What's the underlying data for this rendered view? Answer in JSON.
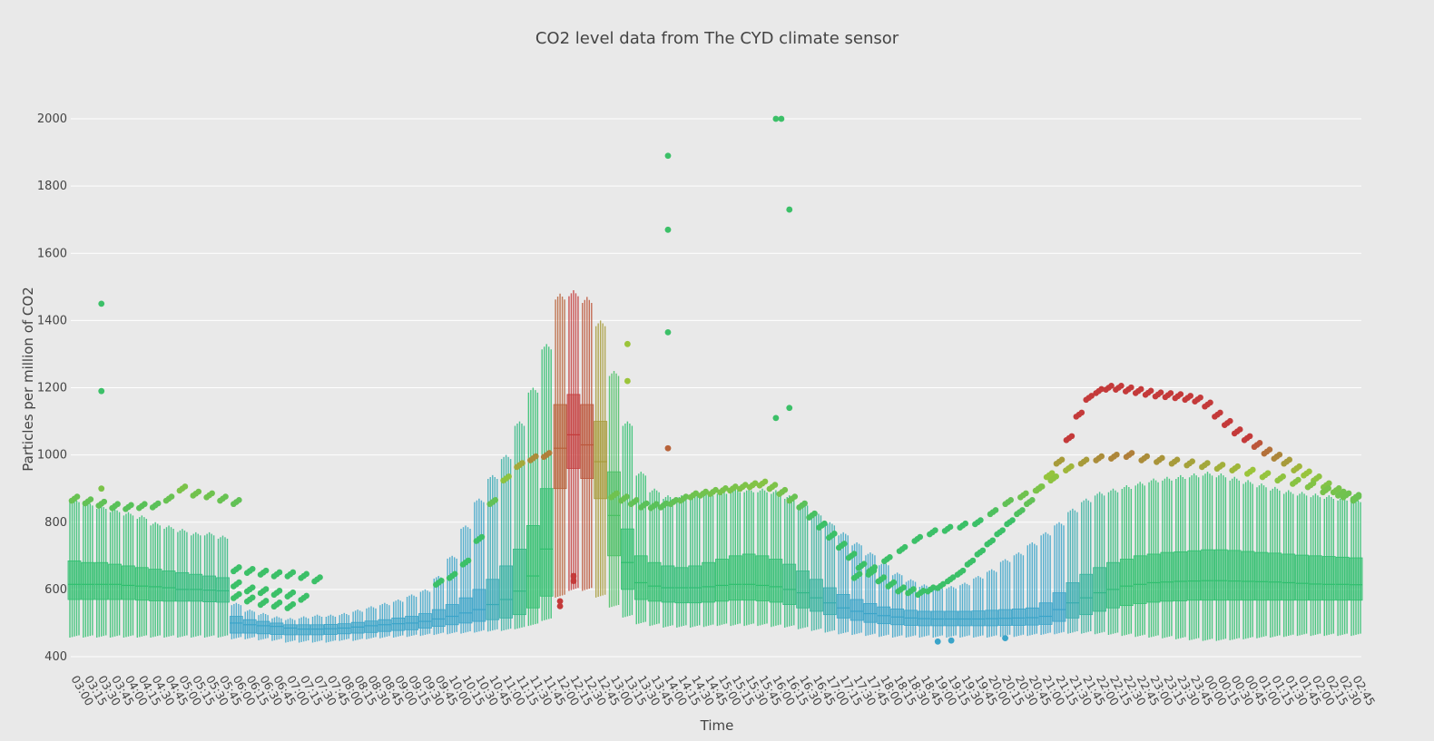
{
  "chart_data": {
    "type": "box",
    "title": "CO2 level data from The CYD climate sensor",
    "xlabel": "Time",
    "ylabel": "Particles per million of CO2",
    "ylim": [
      390,
      2150
    ],
    "yticks": [
      400,
      600,
      800,
      1000,
      1200,
      1400,
      1600,
      1800,
      2000
    ],
    "grid": true,
    "legend": "none",
    "color_scale": {
      "low": "#3aa4c9",
      "mid": "#2fbf6e",
      "high2": "#9bc43a",
      "peak": "#c43a3a"
    },
    "x_tick_labels": [
      "03:00",
      "03:15",
      "03:30",
      "03:45",
      "04:00",
      "04:15",
      "04:30",
      "04:45",
      "05:00",
      "05:15",
      "05:30",
      "05:45",
      "06:00",
      "06:15",
      "06:30",
      "06:45",
      "07:00",
      "07:15",
      "07:30",
      "07:45",
      "08:00",
      "08:15",
      "08:30",
      "08:45",
      "09:00",
      "09:15",
      "09:30",
      "09:45",
      "10:00",
      "10:15",
      "10:30",
      "10:45",
      "11:00",
      "11:15",
      "11:30",
      "11:45",
      "12:00",
      "12:15",
      "12:30",
      "12:45",
      "13:00",
      "13:15",
      "13:30",
      "13:45",
      "14:00",
      "14:15",
      "14:30",
      "14:45",
      "15:00",
      "15:15",
      "15:30",
      "15:45",
      "16:00",
      "16:15",
      "16:30",
      "16:45",
      "17:00",
      "17:15",
      "17:30",
      "17:45",
      "18:00",
      "18:15",
      "18:30",
      "18:45",
      "19:00",
      "19:15",
      "19:30",
      "19:45",
      "20:00",
      "20:15",
      "20:30",
      "20:45",
      "21:00",
      "21:15",
      "21:30",
      "21:45",
      "22:00",
      "22:15",
      "22:30",
      "22:45",
      "23:00",
      "23:15",
      "23:30",
      "23:45",
      "00:00",
      "00:15",
      "00:30",
      "00:45",
      "01:00",
      "01:15",
      "01:30",
      "01:45",
      "02:00",
      "02:15",
      "02:30",
      "02:45"
    ],
    "boxes": [
      {
        "time": "03:00",
        "min": 460,
        "q1": 570,
        "median": 615,
        "q3": 685,
        "max": 870
      },
      {
        "time": "03:15",
        "min": 460,
        "q1": 570,
        "median": 615,
        "q3": 680,
        "max": 860
      },
      {
        "time": "03:30",
        "min": 460,
        "q1": 570,
        "median": 615,
        "q3": 680,
        "max": 850
      },
      {
        "time": "03:45",
        "min": 460,
        "q1": 570,
        "median": 615,
        "q3": 675,
        "max": 840
      },
      {
        "time": "04:00",
        "min": 460,
        "q1": 570,
        "median": 612,
        "q3": 670,
        "max": 830
      },
      {
        "time": "04:15",
        "min": 460,
        "q1": 568,
        "median": 610,
        "q3": 665,
        "max": 820
      },
      {
        "time": "04:30",
        "min": 460,
        "q1": 566,
        "median": 608,
        "q3": 660,
        "max": 800
      },
      {
        "time": "04:45",
        "min": 460,
        "q1": 565,
        "median": 605,
        "q3": 655,
        "max": 790
      },
      {
        "time": "05:00",
        "min": 460,
        "q1": 565,
        "median": 600,
        "q3": 650,
        "max": 780
      },
      {
        "time": "05:15",
        "min": 460,
        "q1": 565,
        "median": 600,
        "q3": 645,
        "max": 770
      },
      {
        "time": "05:30",
        "min": 460,
        "q1": 563,
        "median": 598,
        "q3": 640,
        "max": 770
      },
      {
        "time": "05:45",
        "min": 460,
        "q1": 562,
        "median": 596,
        "q3": 635,
        "max": 760
      },
      {
        "time": "06:00",
        "min": 455,
        "q1": 470,
        "median": 500,
        "q3": 520,
        "max": 560
      },
      {
        "time": "06:15",
        "min": 455,
        "q1": 470,
        "median": 495,
        "q3": 510,
        "max": 540
      },
      {
        "time": "06:30",
        "min": 452,
        "q1": 468,
        "median": 492,
        "q3": 505,
        "max": 530
      },
      {
        "time": "06:45",
        "min": 450,
        "q1": 466,
        "median": 490,
        "q3": 500,
        "max": 520
      },
      {
        "time": "07:00",
        "min": 445,
        "q1": 465,
        "median": 485,
        "q3": 495,
        "max": 515
      },
      {
        "time": "07:15",
        "min": 445,
        "q1": 465,
        "median": 482,
        "q3": 495,
        "max": 520
      },
      {
        "time": "07:30",
        "min": 445,
        "q1": 465,
        "median": 482,
        "q3": 495,
        "max": 525
      },
      {
        "time": "07:45",
        "min": 445,
        "q1": 466,
        "median": 483,
        "q3": 496,
        "max": 525
      },
      {
        "time": "08:00",
        "min": 450,
        "q1": 468,
        "median": 485,
        "q3": 498,
        "max": 530
      },
      {
        "time": "08:15",
        "min": 450,
        "q1": 470,
        "median": 488,
        "q3": 502,
        "max": 540
      },
      {
        "time": "08:30",
        "min": 455,
        "q1": 472,
        "median": 492,
        "q3": 506,
        "max": 550
      },
      {
        "time": "08:45",
        "min": 458,
        "q1": 475,
        "median": 495,
        "q3": 510,
        "max": 560
      },
      {
        "time": "09:00",
        "min": 460,
        "q1": 478,
        "median": 498,
        "q3": 515,
        "max": 570
      },
      {
        "time": "09:15",
        "min": 462,
        "q1": 480,
        "median": 500,
        "q3": 520,
        "max": 585
      },
      {
        "time": "09:30",
        "min": 465,
        "q1": 485,
        "median": 505,
        "q3": 528,
        "max": 600
      },
      {
        "time": "09:45",
        "min": 468,
        "q1": 490,
        "median": 512,
        "q3": 540,
        "max": 640
      },
      {
        "time": "10:00",
        "min": 470,
        "q1": 495,
        "median": 520,
        "q3": 555,
        "max": 700
      },
      {
        "time": "10:15",
        "min": 472,
        "q1": 500,
        "median": 530,
        "q3": 575,
        "max": 790
      },
      {
        "time": "10:30",
        "min": 475,
        "q1": 505,
        "median": 540,
        "q3": 600,
        "max": 870
      },
      {
        "time": "10:45",
        "min": 478,
        "q1": 510,
        "median": 555,
        "q3": 630,
        "max": 940
      },
      {
        "time": "11:00",
        "min": 480,
        "q1": 515,
        "median": 570,
        "q3": 670,
        "max": 1000
      },
      {
        "time": "11:15",
        "min": 485,
        "q1": 525,
        "median": 595,
        "q3": 720,
        "max": 1100
      },
      {
        "time": "11:30",
        "min": 495,
        "q1": 545,
        "median": 640,
        "q3": 790,
        "max": 1200
      },
      {
        "time": "11:45",
        "min": 510,
        "q1": 580,
        "median": 720,
        "q3": 900,
        "max": 1330
      },
      {
        "time": "12:00",
        "min": 580,
        "q1": 900,
        "median": 1020,
        "q3": 1150,
        "max": 1480
      },
      {
        "time": "12:15",
        "min": 600,
        "q1": 960,
        "median": 1060,
        "q3": 1180,
        "max": 1490
      },
      {
        "time": "12:30",
        "min": 600,
        "q1": 930,
        "median": 1030,
        "q3": 1150,
        "max": 1470
      },
      {
        "time": "12:45",
        "min": 580,
        "q1": 870,
        "median": 980,
        "q3": 1100,
        "max": 1400
      },
      {
        "time": "13:00",
        "min": 550,
        "q1": 700,
        "median": 820,
        "q3": 950,
        "max": 1250
      },
      {
        "time": "13:15",
        "min": 520,
        "q1": 600,
        "median": 680,
        "q3": 780,
        "max": 1100
      },
      {
        "time": "13:30",
        "min": 500,
        "q1": 570,
        "median": 620,
        "q3": 700,
        "max": 950
      },
      {
        "time": "13:45",
        "min": 495,
        "q1": 565,
        "median": 610,
        "q3": 680,
        "max": 900
      },
      {
        "time": "14:00",
        "min": 490,
        "q1": 562,
        "median": 605,
        "q3": 670,
        "max": 880
      },
      {
        "time": "14:15",
        "min": 490,
        "q1": 560,
        "median": 605,
        "q3": 665,
        "max": 880
      },
      {
        "time": "14:30",
        "min": 490,
        "q1": 560,
        "median": 605,
        "q3": 670,
        "max": 885
      },
      {
        "time": "14:45",
        "min": 492,
        "q1": 562,
        "median": 608,
        "q3": 680,
        "max": 890
      },
      {
        "time": "15:00",
        "min": 495,
        "q1": 565,
        "median": 612,
        "q3": 690,
        "max": 895
      },
      {
        "time": "15:15",
        "min": 495,
        "q1": 568,
        "median": 615,
        "q3": 700,
        "max": 900
      },
      {
        "time": "15:30",
        "min": 495,
        "q1": 568,
        "median": 615,
        "q3": 705,
        "max": 900
      },
      {
        "time": "15:45",
        "min": 495,
        "q1": 566,
        "median": 612,
        "q3": 700,
        "max": 900
      },
      {
        "time": "16:00",
        "min": 492,
        "q1": 562,
        "median": 608,
        "q3": 690,
        "max": 895
      },
      {
        "time": "16:15",
        "min": 490,
        "q1": 555,
        "median": 600,
        "q3": 675,
        "max": 880
      },
      {
        "time": "16:30",
        "min": 485,
        "q1": 545,
        "median": 590,
        "q3": 655,
        "max": 860
      },
      {
        "time": "16:45",
        "min": 480,
        "q1": 535,
        "median": 575,
        "q3": 630,
        "max": 830
      },
      {
        "time": "17:00",
        "min": 475,
        "q1": 525,
        "median": 560,
        "q3": 605,
        "max": 800
      },
      {
        "time": "17:15",
        "min": 470,
        "q1": 515,
        "median": 545,
        "q3": 585,
        "max": 770
      },
      {
        "time": "17:30",
        "min": 468,
        "q1": 508,
        "median": 535,
        "q3": 570,
        "max": 740
      },
      {
        "time": "17:45",
        "min": 465,
        "q1": 502,
        "median": 528,
        "q3": 558,
        "max": 710
      },
      {
        "time": "18:00",
        "min": 462,
        "q1": 498,
        "median": 522,
        "q3": 548,
        "max": 680
      },
      {
        "time": "18:15",
        "min": 460,
        "q1": 495,
        "median": 518,
        "q3": 542,
        "max": 650
      },
      {
        "time": "18:30",
        "min": 460,
        "q1": 493,
        "median": 515,
        "q3": 538,
        "max": 630
      },
      {
        "time": "18:45",
        "min": 460,
        "q1": 492,
        "median": 513,
        "q3": 535,
        "max": 615
      },
      {
        "time": "19:00",
        "min": 460,
        "q1": 492,
        "median": 512,
        "q3": 535,
        "max": 610
      },
      {
        "time": "19:15",
        "min": 460,
        "q1": 492,
        "median": 512,
        "q3": 535,
        "max": 610
      },
      {
        "time": "19:30",
        "min": 460,
        "q1": 492,
        "median": 512,
        "q3": 535,
        "max": 620
      },
      {
        "time": "19:45",
        "min": 460,
        "q1": 492,
        "median": 512,
        "q3": 536,
        "max": 640
      },
      {
        "time": "20:00",
        "min": 460,
        "q1": 492,
        "median": 513,
        "q3": 538,
        "max": 660
      },
      {
        "time": "20:15",
        "min": 462,
        "q1": 493,
        "median": 514,
        "q3": 540,
        "max": 690
      },
      {
        "time": "20:30",
        "min": 462,
        "q1": 493,
        "median": 515,
        "q3": 542,
        "max": 710
      },
      {
        "time": "20:45",
        "min": 465,
        "q1": 494,
        "median": 516,
        "q3": 545,
        "max": 740
      },
      {
        "time": "21:00",
        "min": 468,
        "q1": 496,
        "median": 520,
        "q3": 560,
        "max": 770
      },
      {
        "time": "21:15",
        "min": 470,
        "q1": 505,
        "median": 540,
        "q3": 590,
        "max": 800
      },
      {
        "time": "21:30",
        "min": 472,
        "q1": 515,
        "median": 560,
        "q3": 620,
        "max": 840
      },
      {
        "time": "21:45",
        "min": 472,
        "q1": 525,
        "median": 575,
        "q3": 645,
        "max": 870
      },
      {
        "time": "22:00",
        "min": 470,
        "q1": 535,
        "median": 590,
        "q3": 665,
        "max": 890
      },
      {
        "time": "22:15",
        "min": 468,
        "q1": 545,
        "median": 600,
        "q3": 680,
        "max": 900
      },
      {
        "time": "22:30",
        "min": 465,
        "q1": 552,
        "median": 610,
        "q3": 690,
        "max": 910
      },
      {
        "time": "22:45",
        "min": 462,
        "q1": 558,
        "median": 615,
        "q3": 700,
        "max": 920
      },
      {
        "time": "23:00",
        "min": 460,
        "q1": 562,
        "median": 620,
        "q3": 705,
        "max": 930
      },
      {
        "time": "23:15",
        "min": 458,
        "q1": 565,
        "median": 622,
        "q3": 710,
        "max": 935
      },
      {
        "time": "23:30",
        "min": 455,
        "q1": 566,
        "median": 624,
        "q3": 712,
        "max": 940
      },
      {
        "time": "23:45",
        "min": 452,
        "q1": 568,
        "median": 625,
        "q3": 715,
        "max": 945
      },
      {
        "time": "00:00",
        "min": 450,
        "q1": 568,
        "median": 626,
        "q3": 718,
        "max": 950
      },
      {
        "time": "00:15",
        "min": 450,
        "q1": 568,
        "median": 626,
        "q3": 718,
        "max": 945
      },
      {
        "time": "00:30",
        "min": 452,
        "q1": 568,
        "median": 625,
        "q3": 716,
        "max": 935
      },
      {
        "time": "00:45",
        "min": 455,
        "q1": 568,
        "median": 624,
        "q3": 713,
        "max": 925
      },
      {
        "time": "01:00",
        "min": 458,
        "q1": 568,
        "median": 623,
        "q3": 710,
        "max": 915
      },
      {
        "time": "01:15",
        "min": 460,
        "q1": 568,
        "median": 622,
        "q3": 708,
        "max": 905
      },
      {
        "time": "01:30",
        "min": 462,
        "q1": 568,
        "median": 620,
        "q3": 705,
        "max": 895
      },
      {
        "time": "01:45",
        "min": 465,
        "q1": 568,
        "median": 618,
        "q3": 702,
        "max": 890
      },
      {
        "time": "02:00",
        "min": 465,
        "q1": 568,
        "median": 616,
        "q3": 700,
        "max": 885
      },
      {
        "time": "02:15",
        "min": 465,
        "q1": 568,
        "median": 615,
        "q3": 698,
        "max": 880
      },
      {
        "time": "02:30",
        "min": 465,
        "q1": 568,
        "median": 615,
        "q3": 696,
        "max": 875
      },
      {
        "time": "02:45",
        "min": 465,
        "q1": 568,
        "median": 614,
        "q3": 694,
        "max": 870
      }
    ],
    "upper_traces": [
      {
        "values": [
          870,
          862,
          855,
          848,
          845,
          848,
          850,
          870,
          900,
          885,
          880,
          870,
          860
        ]
      },
      {
        "values": [
          660,
          655,
          650,
          645,
          645,
          640,
          630
        ]
      },
      {
        "values": [
          615,
          600,
          595,
          590,
          585,
          575
        ]
      },
      {
        "values": [
          580,
          570,
          560,
          555,
          550
        ]
      },
      {
        "values": [
          620,
          640,
          680,
          750,
          860,
          930,
          970,
          990,
          1000
        ]
      },
      {
        "values": [
          880,
          870,
          860,
          850,
          848,
          850,
          860,
          870,
          880,
          885,
          890,
          895,
          900,
          905,
          910,
          915,
          905,
          890,
          870,
          850,
          820,
          790,
          760,
          730,
          700,
          670,
          650,
          630,
          615,
          600,
          595,
          590,
          600,
          610,
          630,
          650,
          680,
          710,
          740,
          770,
          800,
          830,
          860,
          900,
          940,
          980,
          1050,
          1120,
          1170,
          1190,
          1200,
          1200,
          1195,
          1190,
          1185,
          1180,
          1178,
          1175,
          1170,
          1165,
          1150,
          1120,
          1095,
          1070,
          1050,
          1030,
          1010,
          995,
          980,
          960,
          945,
          930,
          910,
          895,
          880,
          870
        ]
      },
      {
        "values": [
          640,
          660,
          690,
          720,
          750,
          770,
          780,
          790,
          800,
          830,
          860,
          880,
          900,
          930,
          960,
          980,
          990,
          995,
          1000,
          990,
          985,
          980,
          975,
          970,
          965,
          960,
          950,
          940,
          930,
          920,
          910,
          895,
          885,
          875
        ]
      }
    ],
    "outliers": [
      {
        "time": "03:30",
        "value": 1450
      },
      {
        "time": "03:30",
        "value": 1190
      },
      {
        "time": "03:30",
        "value": 900
      },
      {
        "time": "14:00",
        "value": 1890
      },
      {
        "time": "14:00",
        "value": 1670
      },
      {
        "time": "14:00",
        "value": 1365
      },
      {
        "time": "14:00",
        "value": 1020
      },
      {
        "time": "16:00",
        "value": 2000
      },
      {
        "time": "16:00",
        "value": 2000
      },
      {
        "time": "16:15",
        "value": 1730
      },
      {
        "time": "16:15",
        "value": 1140
      },
      {
        "time": "16:00",
        "value": 1110
      },
      {
        "time": "13:15",
        "value": 1330
      },
      {
        "time": "13:15",
        "value": 1220
      },
      {
        "time": "12:15",
        "value": 640
      },
      {
        "time": "12:15",
        "value": 625
      },
      {
        "time": "12:00",
        "value": 565
      },
      {
        "time": "12:00",
        "value": 550
      },
      {
        "time": "19:00",
        "value": 445
      },
      {
        "time": "19:15",
        "value": 448
      },
      {
        "time": "20:15",
        "value": 455
      }
    ]
  }
}
